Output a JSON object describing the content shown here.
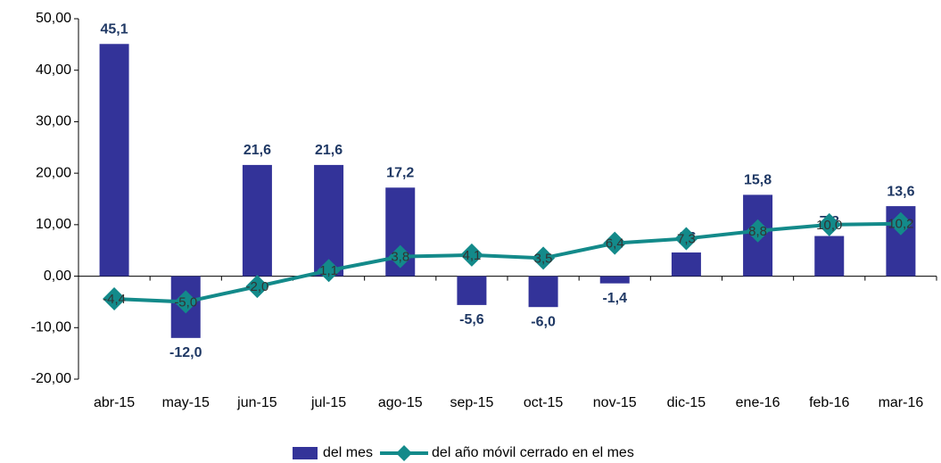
{
  "chart_data": {
    "type": "combo",
    "categories": [
      "abr-15",
      "may-15",
      "jun-15",
      "jul-15",
      "ago-15",
      "sep-15",
      "oct-15",
      "nov-15",
      "dic-15",
      "ene-16",
      "feb-16",
      "mar-16"
    ],
    "series": [
      {
        "name": "del mes",
        "type": "bar",
        "color": "#333399",
        "values": [
          45.1,
          -12.0,
          21.6,
          21.6,
          17.2,
          -5.6,
          -6.0,
          -1.4,
          4.6,
          15.8,
          7.8,
          13.6
        ],
        "value_labels": [
          "45,1",
          "-12,0",
          "21,6",
          "21,6",
          "17,2",
          "-5,6",
          "-6,0",
          "-1,4",
          "4,6",
          "15,8",
          "7,8",
          "13,6"
        ]
      },
      {
        "name": "del año móvil cerrado en el mes",
        "type": "line",
        "color": "#138a8a",
        "values": [
          -4.4,
          -5.0,
          -2.0,
          1.1,
          3.8,
          4.1,
          3.5,
          6.4,
          7.3,
          8.8,
          10.0,
          10.2
        ],
        "value_labels": [
          "-4,4",
          "-5,0",
          "-2,0",
          "1,1",
          "3,8",
          "4,1",
          "3,5",
          "6,4",
          "7,3",
          "8,8",
          "10,0",
          "10,2"
        ]
      }
    ],
    "ylim": [
      -20,
      50
    ],
    "yticks": [
      {
        "value": -20,
        "label": "-20,00"
      },
      {
        "value": -10,
        "label": "-10,00"
      },
      {
        "value": 0,
        "label": "0,00"
      },
      {
        "value": 10,
        "label": "10,00"
      },
      {
        "value": 20,
        "label": "20,00"
      },
      {
        "value": 30,
        "label": "30,00"
      },
      {
        "value": 40,
        "label": "40,00"
      },
      {
        "value": 50,
        "label": "50,00"
      }
    ],
    "legend": "bottom"
  }
}
